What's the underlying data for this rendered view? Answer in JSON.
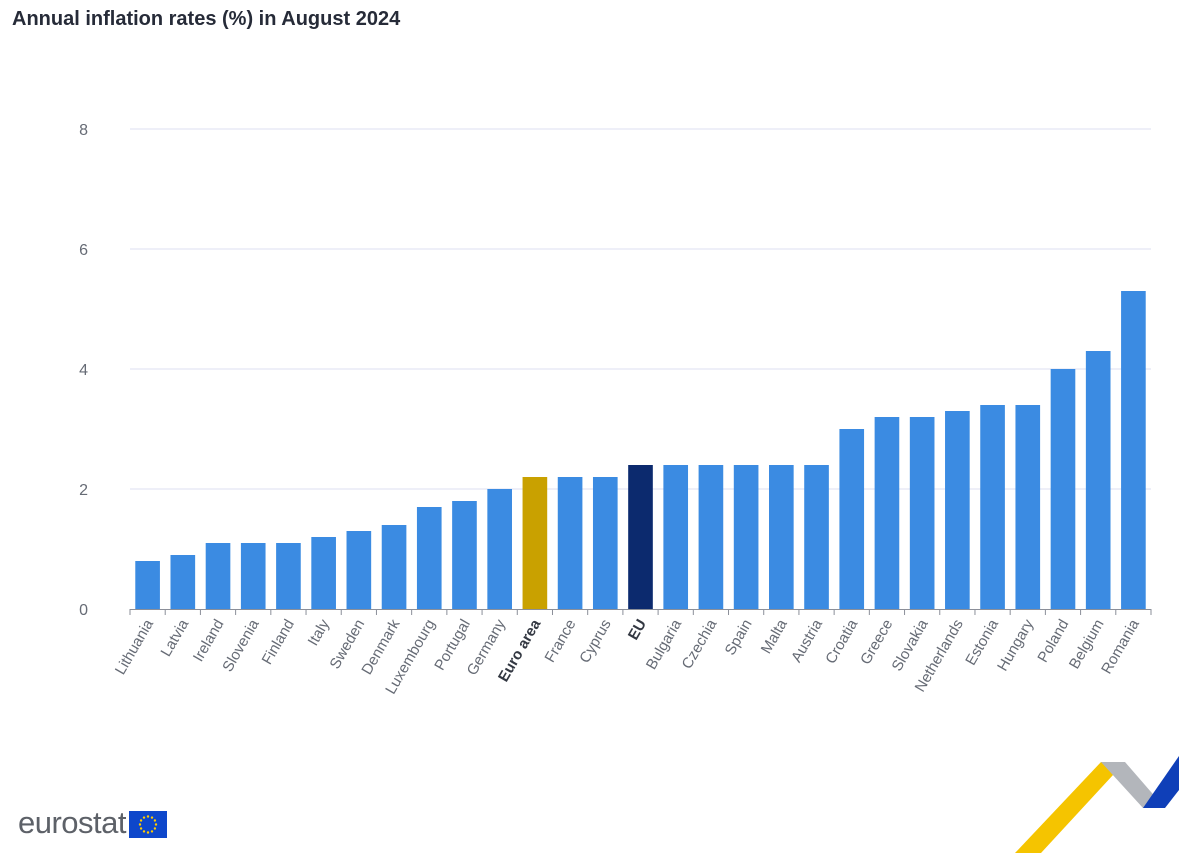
{
  "chart_data": {
    "type": "bar",
    "title": "Annual inflation rates (%) in August 2024",
    "xlabel": "",
    "ylabel": "",
    "ylim": [
      0,
      8
    ],
    "yticks": [
      0,
      2,
      4,
      6,
      8
    ],
    "grid": true,
    "legend": "none",
    "categories": [
      "Lithuania",
      "Latvia",
      "Ireland",
      "Slovenia",
      "Finland",
      "Italy",
      "Sweden",
      "Denmark",
      "Luxembourg",
      "Portugal",
      "Germany",
      "Euro area",
      "France",
      "Cyprus",
      "EU",
      "Bulgaria",
      "Czechia",
      "Spain",
      "Malta",
      "Austria",
      "Croatia",
      "Greece",
      "Slovakia",
      "Netherlands",
      "Estonia",
      "Hungary",
      "Poland",
      "Belgium",
      "Romania"
    ],
    "values": [
      0.8,
      0.9,
      1.1,
      1.1,
      1.1,
      1.2,
      1.3,
      1.4,
      1.7,
      1.8,
      2.0,
      2.2,
      2.2,
      2.2,
      2.4,
      2.4,
      2.4,
      2.4,
      2.4,
      2.4,
      3.0,
      3.2,
      3.2,
      3.3,
      3.4,
      3.4,
      4.0,
      4.3,
      5.3
    ],
    "highlight": {
      "Euro area": "#c9a100",
      "EU": "#0c2a6e"
    },
    "bold_categories": [
      "Euro area",
      "EU"
    ]
  },
  "colors": {
    "bar": "#3b8be2",
    "grid": "#dcdff2",
    "axis": "#8b8f99",
    "flag_blue": "#0e47cb",
    "flag_star": "#ffcc00",
    "logo_yellow": "#f5c400",
    "logo_grey": "#b3b6bb",
    "logo_blue": "#0f3fb8"
  },
  "branding": {
    "name": "eurostat",
    "flag_icon": "eu-flag-icon",
    "corner_icon": "eurostat-arrow-icon"
  }
}
